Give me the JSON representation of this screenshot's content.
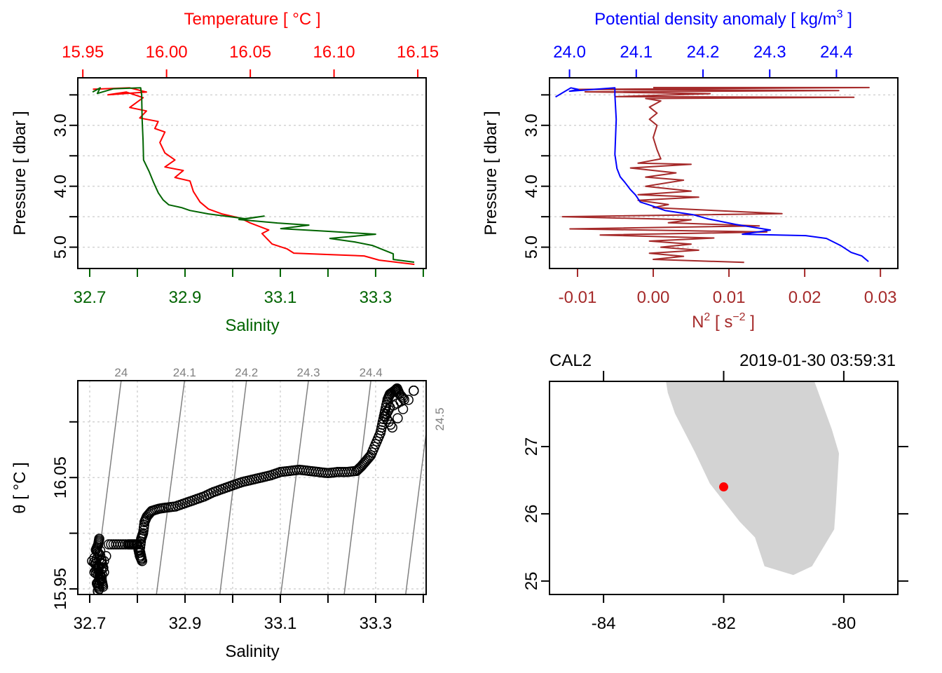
{
  "chart_data": [
    {
      "id": "profile_ts",
      "type": "line",
      "title": "",
      "top_axis_label": "Temperature [ °C ]",
      "top_axis_color": "#ff0000",
      "top_ticks": [
        "15.95",
        "16.00",
        "16.05",
        "16.10",
        "16.15"
      ],
      "top_tick_values": [
        15.95,
        16.0,
        16.05,
        16.1,
        16.15
      ],
      "top_range": [
        15.947,
        16.155
      ],
      "xlabel": "Salinity",
      "x_axis_color": "#006400",
      "x_ticks": [
        "32.7",
        "",
        "32.9",
        "",
        "33.1",
        "",
        "33.3",
        ""
      ],
      "x_tick_values": [
        32.7,
        32.8,
        32.9,
        33.0,
        33.1,
        33.2,
        33.3,
        33.4
      ],
      "x_range": [
        32.675,
        33.406
      ],
      "ylabel": "Pressure [ dbar ]",
      "y_ticks": [
        "",
        "3.0",
        "",
        "4.0",
        "",
        "5.0"
      ],
      "y_tick_values": [
        2.5,
        3.0,
        3.5,
        4.0,
        4.5,
        5.0
      ],
      "y_range": [
        5.35,
        2.22
      ],
      "grid": "horizontal dotted",
      "series": [
        {
          "name": "Salinity",
          "color": "#006400",
          "axis": "bottom",
          "points": [
            [
              32.706,
              2.454
            ],
            [
              32.722,
              2.385
            ],
            [
              32.716,
              2.477
            ],
            [
              32.75,
              2.4
            ],
            [
              32.807,
              2.385
            ],
            [
              32.809,
              2.5
            ],
            [
              32.81,
              2.902
            ],
            [
              32.812,
              3.247
            ],
            [
              32.813,
              3.569
            ],
            [
              32.818,
              3.649
            ],
            [
              32.825,
              3.764
            ],
            [
              32.834,
              3.937
            ],
            [
              32.844,
              4.109
            ],
            [
              32.854,
              4.224
            ],
            [
              32.866,
              4.305
            ],
            [
              32.893,
              4.351
            ],
            [
              32.91,
              4.397
            ],
            [
              32.949,
              4.454
            ],
            [
              32.984,
              4.489
            ],
            [
              33.028,
              4.534
            ],
            [
              33.066,
              4.489
            ],
            [
              33.013,
              4.546
            ],
            [
              33.094,
              4.603
            ],
            [
              33.16,
              4.638
            ],
            [
              33.101,
              4.695
            ],
            [
              33.204,
              4.741
            ],
            [
              33.3,
              4.787
            ],
            [
              33.204,
              4.856
            ],
            [
              33.256,
              4.914
            ],
            [
              33.293,
              4.971
            ],
            [
              33.315,
              5.04
            ],
            [
              33.337,
              5.109
            ],
            [
              33.337,
              5.201
            ],
            [
              33.381,
              5.247
            ]
          ]
        },
        {
          "name": "Temperature",
          "color": "#ff0000",
          "axis": "top",
          "points": [
            [
              15.956,
              2.408
            ],
            [
              15.978,
              2.385
            ],
            [
              15.988,
              2.454
            ],
            [
              15.965,
              2.5
            ],
            [
              15.976,
              2.454
            ],
            [
              15.986,
              2.546
            ],
            [
              15.978,
              2.707
            ],
            [
              15.988,
              2.764
            ],
            [
              15.984,
              2.879
            ],
            [
              15.995,
              2.937
            ],
            [
              15.993,
              3.052
            ],
            [
              15.999,
              3.109
            ],
            [
              15.996,
              3.282
            ],
            [
              15.999,
              3.454
            ],
            [
              16.005,
              3.569
            ],
            [
              15.999,
              3.684
            ],
            [
              16.01,
              3.741
            ],
            [
              16.005,
              3.856
            ],
            [
              16.014,
              3.914
            ],
            [
              16.016,
              4.086
            ],
            [
              16.02,
              4.259
            ],
            [
              16.025,
              4.374
            ],
            [
              16.033,
              4.454
            ],
            [
              16.044,
              4.523
            ],
            [
              16.05,
              4.603
            ],
            [
              16.061,
              4.718
            ],
            [
              16.057,
              4.776
            ],
            [
              16.063,
              4.948
            ],
            [
              16.072,
              5.029
            ],
            [
              16.076,
              5.098
            ],
            [
              16.097,
              5.121
            ],
            [
              16.118,
              5.144
            ],
            [
              16.127,
              5.213
            ],
            [
              16.148,
              5.282
            ]
          ]
        }
      ]
    },
    {
      "id": "profile_density_n2",
      "type": "line",
      "top_axis_label": "Potential density anomaly [ kg/m",
      "top_axis_label_sup": "3",
      "top_axis_label_end": " ]",
      "top_axis_color": "#0000ff",
      "top_ticks": [
        "24.0",
        "24.1",
        "24.2",
        "24.3",
        "24.4"
      ],
      "top_tick_values": [
        24.0,
        24.1,
        24.2,
        24.3,
        24.4
      ],
      "top_range": [
        23.97,
        24.492
      ],
      "xlabel": "N",
      "xlabel_sup": "2",
      "xlabel_mid": " [ s",
      "xlabel_sup2": "−2",
      "xlabel_end": " ]",
      "x_axis_color": "#a52a2a",
      "x_ticks": [
        "-0.01",
        "0.00",
        "0.01",
        "0.02",
        "0.03"
      ],
      "x_tick_values": [
        -0.01,
        0.0,
        0.01,
        0.02,
        0.03
      ],
      "x_range": [
        -0.0137,
        0.0323
      ],
      "ylabel": "Pressure [ dbar ]",
      "y_ticks": [
        "",
        "3.0",
        "",
        "4.0",
        "",
        "5.0"
      ],
      "y_tick_values": [
        2.5,
        3.0,
        3.5,
        4.0,
        4.5,
        5.0
      ],
      "y_range": [
        5.35,
        2.22
      ],
      "grid": "horizontal dotted",
      "series": [
        {
          "name": "Potential density anomaly",
          "color": "#0000ff",
          "axis": "top",
          "points": [
            [
              23.979,
              2.534
            ],
            [
              24.002,
              2.385
            ],
            [
              24.013,
              2.41
            ],
            [
              24.0,
              2.44
            ],
            [
              24.068,
              2.385
            ],
            [
              24.068,
              2.5
            ],
            [
              24.07,
              2.902
            ],
            [
              24.068,
              3.477
            ],
            [
              24.071,
              3.707
            ],
            [
              24.076,
              3.845
            ],
            [
              24.083,
              3.937
            ],
            [
              24.091,
              4.052
            ],
            [
              24.099,
              4.144
            ],
            [
              24.106,
              4.259
            ],
            [
              24.122,
              4.316
            ],
            [
              24.143,
              4.397
            ],
            [
              24.185,
              4.466
            ],
            [
              24.207,
              4.534
            ],
            [
              24.249,
              4.626
            ],
            [
              24.301,
              4.718
            ],
            [
              24.259,
              4.787
            ],
            [
              24.354,
              4.81
            ],
            [
              24.385,
              4.856
            ],
            [
              24.406,
              4.971
            ],
            [
              24.422,
              5.086
            ],
            [
              24.438,
              5.144
            ],
            [
              24.448,
              5.236
            ]
          ]
        },
        {
          "name": "N2",
          "color": "#a52a2a",
          "axis": "bottom",
          "points": [
            [
              0.0,
              2.38
            ],
            [
              0.0285,
              2.38
            ],
            [
              -0.01,
              2.41
            ],
            [
              0.0245,
              2.43
            ],
            [
              -0.009,
              2.45
            ],
            [
              0.0075,
              2.48
            ],
            [
              -0.005,
              2.53
            ],
            [
              0.0265,
              2.54
            ],
            [
              -0.001,
              2.56
            ],
            [
              0.001,
              2.6
            ],
            [
              -0.0005,
              2.7
            ],
            [
              0.0005,
              2.8
            ],
            [
              -0.0005,
              2.9
            ],
            [
              0.0005,
              3.0
            ],
            [
              0.0,
              3.2
            ],
            [
              0.0005,
              3.4
            ],
            [
              0.001,
              3.55
            ],
            [
              -0.002,
              3.62
            ],
            [
              0.005,
              3.64
            ],
            [
              -0.003,
              3.7
            ],
            [
              0.003,
              3.78
            ],
            [
              -0.001,
              3.85
            ],
            [
              0.004,
              3.9
            ],
            [
              -0.001,
              4.0
            ],
            [
              0.005,
              4.08
            ],
            [
              -0.002,
              4.14
            ],
            [
              0.006,
              4.18
            ],
            [
              -0.002,
              4.23
            ],
            [
              0.002,
              4.3
            ],
            [
              0.0,
              4.35
            ],
            [
              0.017,
              4.45
            ],
            [
              -0.012,
              4.5
            ],
            [
              0.005,
              4.55
            ],
            [
              0.002,
              4.6
            ],
            [
              0.014,
              4.65
            ],
            [
              -0.011,
              4.7
            ],
            [
              0.015,
              4.75
            ],
            [
              -0.007,
              4.8
            ],
            [
              0.008,
              4.85
            ],
            [
              -0.0005,
              4.9
            ],
            [
              0.005,
              4.95
            ],
            [
              0.001,
              5.0
            ],
            [
              0.006,
              5.05
            ],
            [
              -0.0005,
              5.1
            ],
            [
              0.004,
              5.15
            ],
            [
              0.0,
              5.2
            ],
            [
              0.012,
              5.25
            ]
          ]
        }
      ]
    },
    {
      "id": "ts_diagram",
      "type": "scatter",
      "xlabel": "Salinity",
      "ylabel": "θ [ °C ]",
      "x_ticks": [
        "32.7",
        "",
        "32.9",
        "",
        "33.1",
        "",
        "33.3",
        ""
      ],
      "x_tick_values": [
        32.7,
        32.8,
        32.9,
        33.0,
        33.1,
        33.2,
        33.3,
        33.4
      ],
      "x_range": [
        32.675,
        33.406
      ],
      "y_ticks": [
        "15.95",
        "",
        "16.05",
        ""
      ],
      "y_tick_values": [
        15.95,
        16.0,
        16.05,
        16.1
      ],
      "y_range": [
        15.945,
        16.137
      ],
      "grid": "dotted both",
      "isopycnals": [
        {
          "label": "24",
          "top_S": 32.766,
          "bottom_S": 32.709
        },
        {
          "label": "24.1",
          "top_S": 32.899,
          "bottom_S": 32.84
        },
        {
          "label": "24.2",
          "top_S": 33.029,
          "bottom_S": 32.973
        },
        {
          "label": "24.3",
          "top_S": 33.159,
          "bottom_S": 33.101
        },
        {
          "label": "24.4",
          "top_S": 33.29,
          "bottom_S": 33.234
        },
        {
          "label": "24.5",
          "top_S": 33.42,
          "bottom_S": 33.363
        }
      ],
      "isopycnal_color": "#808080",
      "points": [
        [
          32.72,
          15.95
        ],
        [
          32.715,
          15.955
        ],
        [
          32.725,
          15.96
        ],
        [
          32.71,
          15.965
        ],
        [
          32.72,
          15.97
        ],
        [
          32.705,
          15.975
        ],
        [
          32.73,
          15.965
        ],
        [
          32.722,
          15.98
        ],
        [
          32.713,
          15.985
        ],
        [
          32.718,
          15.99
        ],
        [
          32.72,
          15.995
        ],
        [
          32.728,
          15.952
        ],
        [
          32.725,
          15.958
        ],
        [
          32.71,
          15.978
        ],
        [
          32.73,
          15.975
        ],
        [
          32.717,
          15.948
        ],
        [
          32.74,
          15.99
        ],
        [
          32.76,
          15.99
        ],
        [
          32.78,
          15.99
        ],
        [
          32.79,
          15.99
        ],
        [
          32.8,
          15.99
        ],
        [
          32.805,
          15.98
        ],
        [
          32.81,
          15.975
        ],
        [
          32.805,
          15.985
        ],
        [
          32.808,
          15.995
        ],
        [
          32.812,
          16.0
        ],
        [
          32.815,
          16.01
        ],
        [
          32.82,
          16.015
        ],
        [
          32.83,
          16.02
        ],
        [
          32.845,
          16.022
        ],
        [
          32.86,
          16.023
        ],
        [
          32.88,
          16.024
        ],
        [
          32.9,
          16.027
        ],
        [
          32.92,
          16.03
        ],
        [
          32.94,
          16.033
        ],
        [
          32.96,
          16.037
        ],
        [
          32.98,
          16.04
        ],
        [
          33.0,
          16.043
        ],
        [
          33.02,
          16.046
        ],
        [
          33.04,
          16.048
        ],
        [
          33.06,
          16.05
        ],
        [
          33.08,
          16.052
        ],
        [
          33.1,
          16.055
        ],
        [
          33.12,
          16.056
        ],
        [
          33.14,
          16.057
        ],
        [
          33.16,
          16.056
        ],
        [
          33.18,
          16.055
        ],
        [
          33.2,
          16.054
        ],
        [
          33.22,
          16.055
        ],
        [
          33.24,
          16.055
        ],
        [
          33.26,
          16.056
        ],
        [
          33.27,
          16.06
        ],
        [
          33.28,
          16.065
        ],
        [
          33.29,
          16.07
        ],
        [
          33.3,
          16.08
        ],
        [
          33.31,
          16.09
        ],
        [
          33.315,
          16.1
        ],
        [
          33.32,
          16.11
        ],
        [
          33.325,
          16.12
        ],
        [
          33.33,
          16.125
        ],
        [
          33.34,
          16.128
        ],
        [
          33.345,
          16.13
        ],
        [
          33.35,
          16.125
        ],
        [
          33.36,
          16.12
        ],
        [
          33.33,
          16.113
        ],
        [
          33.32,
          16.105
        ],
        [
          33.335,
          16.095
        ],
        [
          33.38,
          16.128
        ]
      ]
    },
    {
      "id": "station_map",
      "type": "map",
      "station": "CAL2",
      "timestamp": "2019-01-30 03:59:31",
      "x_ticks": [
        "-84",
        "-82",
        "-80"
      ],
      "x_tick_values": [
        -84,
        -82,
        -80
      ],
      "x_range": [
        -84.9,
        -79.1
      ],
      "y_ticks": [
        "25",
        "26",
        "27"
      ],
      "y_tick_values": [
        25,
        26,
        27
      ],
      "y_range": [
        24.8,
        27.97
      ],
      "land_color": "#d3d3d3",
      "land_polygon": [
        [
          -82.96,
          27.97
        ],
        [
          -82.93,
          27.8
        ],
        [
          -82.81,
          27.49
        ],
        [
          -82.48,
          26.92
        ],
        [
          -82.23,
          26.45
        ],
        [
          -81.73,
          25.88
        ],
        [
          -81.48,
          25.65
        ],
        [
          -81.32,
          25.22
        ],
        [
          -80.84,
          25.09
        ],
        [
          -80.53,
          25.22
        ],
        [
          -80.16,
          25.77
        ],
        [
          -80.13,
          26.14
        ],
        [
          -80.08,
          26.9
        ],
        [
          -80.2,
          27.26
        ],
        [
          -80.49,
          27.97
        ]
      ],
      "station_position": [
        -82.0,
        26.4
      ],
      "station_color": "#ff0000"
    }
  ]
}
